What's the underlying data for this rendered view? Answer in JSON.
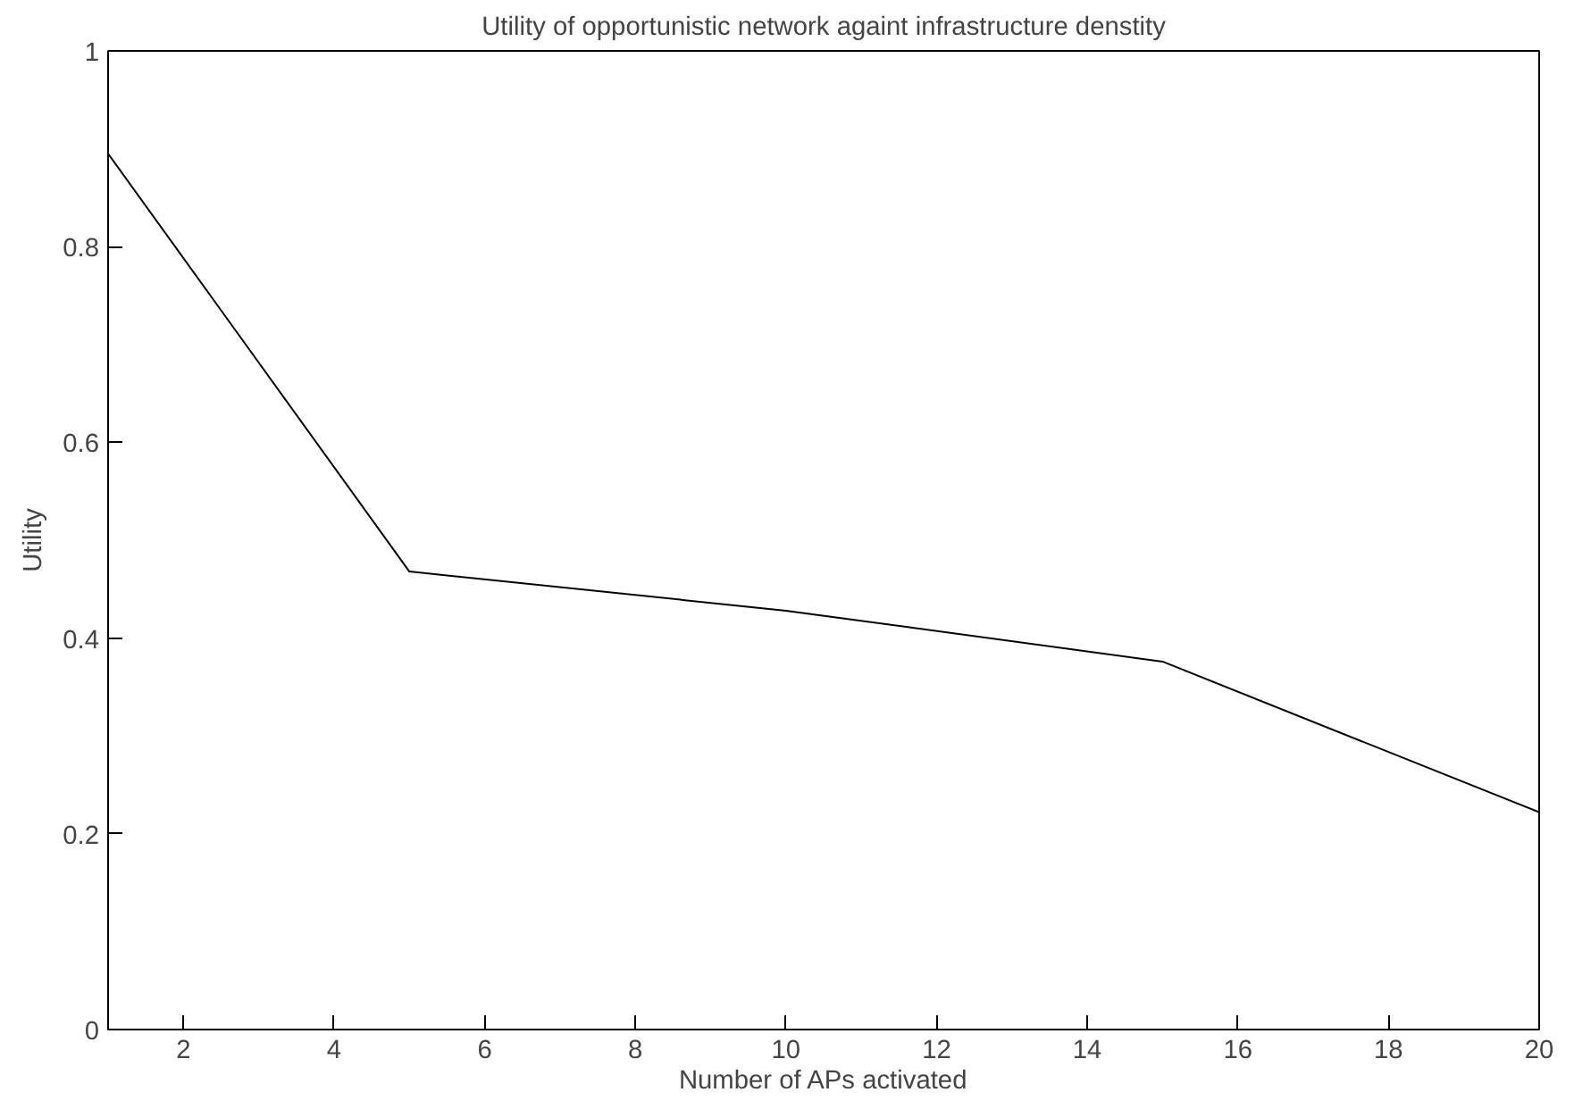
{
  "chart_data": {
    "type": "line",
    "title": "Utility of opportunistic network againt infrastructure denstity",
    "xlabel": "Number of APs activated",
    "ylabel": "Utility",
    "x": [
      1,
      5,
      10,
      15,
      20
    ],
    "series": [
      {
        "color": "#000000",
        "values": [
          0.895,
          0.468,
          0.428,
          0.376,
          0.222
        ]
      }
    ],
    "xlim": [
      1,
      20
    ],
    "xticks": [
      2,
      4,
      6,
      8,
      10,
      12,
      14,
      16,
      18,
      20
    ],
    "ylim": [
      0,
      1
    ],
    "yticks": [
      0,
      0.2,
      0.4,
      0.6,
      0.8,
      1
    ],
    "grid": false
  }
}
